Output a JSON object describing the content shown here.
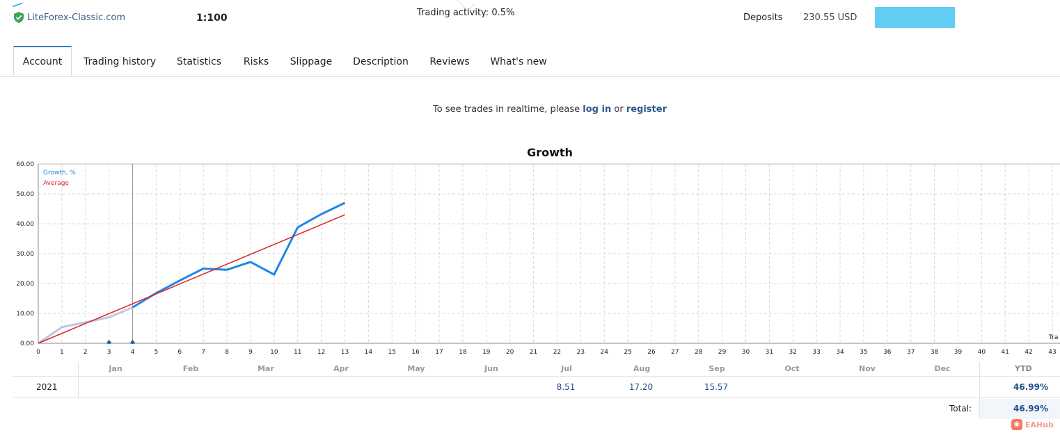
{
  "header": {
    "broker": "LiteForex-Classic.com",
    "leverage": "1:100",
    "activity_label": "Trading activity: 0.5%",
    "deposits_label": "Deposits",
    "deposits_value": "230.55 USD",
    "accent_color": "#62cdf4",
    "verified_icon": "shield-check-icon"
  },
  "tabs": [
    {
      "label": "Account",
      "active": true
    },
    {
      "label": "Trading history"
    },
    {
      "label": "Statistics"
    },
    {
      "label": "Risks"
    },
    {
      "label": "Slippage"
    },
    {
      "label": "Description"
    },
    {
      "label": "Reviews"
    },
    {
      "label": "What's new"
    }
  ],
  "realtime": {
    "prefix": "To see trades in realtime, please ",
    "login": "log in",
    "middle": " or ",
    "register": "register"
  },
  "chart_data": {
    "type": "line",
    "title": "Growth",
    "x_axis_end_label": "Tra",
    "xlim": [
      0,
      43
    ],
    "ylim": [
      0,
      60
    ],
    "y_ticks": [
      "0.00",
      "10.00",
      "20.00",
      "30.00",
      "40.00",
      "50.00",
      "60.00"
    ],
    "grid": true,
    "legend": "top-left",
    "marker_x": 4,
    "deposit_markers": [
      3,
      4
    ],
    "series": [
      {
        "name": "Growth, %",
        "color": "#1e88e5",
        "x": [
          0,
          1,
          2,
          3,
          4,
          5,
          6,
          7,
          8,
          9,
          10,
          11,
          12,
          13
        ],
        "y": [
          0,
          5.4,
          7,
          8.7,
          12,
          16.8,
          21,
          25,
          24.6,
          27.2,
          23,
          38.8,
          43.2,
          47
        ]
      },
      {
        "name": "Average",
        "color": "#e02020",
        "x": [
          0,
          13
        ],
        "y": [
          0,
          43
        ]
      }
    ]
  },
  "monthly": {
    "months": [
      "Jan",
      "Feb",
      "Mar",
      "Apr",
      "May",
      "Jun",
      "Jul",
      "Aug",
      "Sep",
      "Oct",
      "Nov",
      "Dec"
    ],
    "ytd_label": "YTD",
    "year": "2021",
    "values": {
      "Jul": "8.51",
      "Aug": "17.20",
      "Sep": "15.57"
    },
    "ytd": "46.99%",
    "total_label": "Total:",
    "total": "46.99%"
  },
  "watermark": "EAHub"
}
